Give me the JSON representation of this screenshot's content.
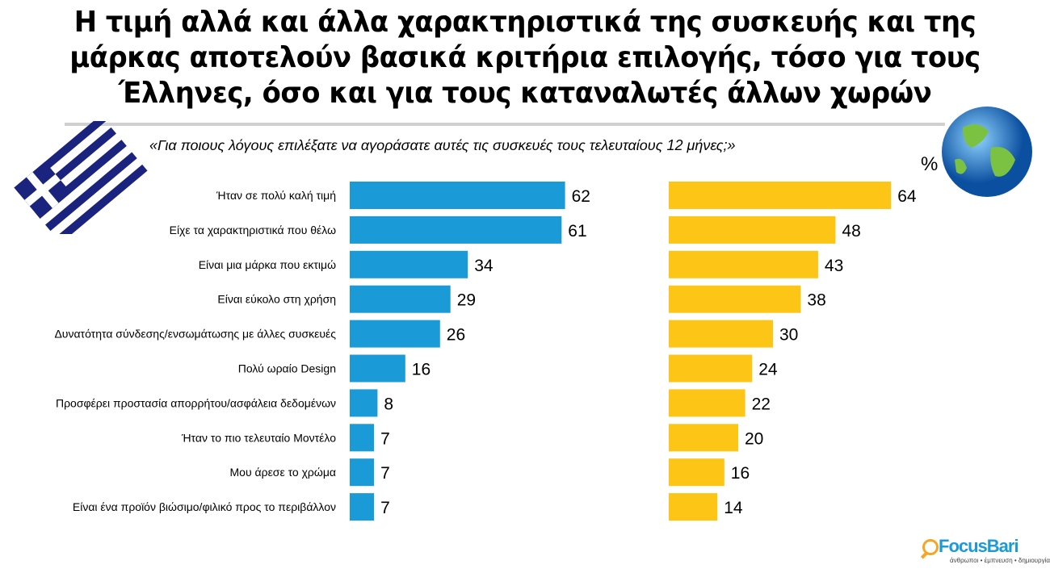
{
  "title": "Η τιμή αλλά και άλλα χαρακτηριστικά της συσκευής και της μάρκας αποτελούν βασικά κριτήρια επιλογής, τόσο για τους Έλληνες, όσο και για τους καταναλωτές άλλων χωρών",
  "subtitle": "«Για ποιους λόγους επιλέξατε να αγοράσατε αυτές τις συσκευές τους τελευταίους 12 μήνες;»",
  "unit": "%",
  "logo": {
    "name": "FocusBari",
    "tagline": "άνθρωποι • έμπνευση • δημιουργία"
  },
  "chart_data": {
    "type": "bar",
    "orientation": "horizontal",
    "title": "«Για ποιους λόγους επιλέξατε να αγοράσατε αυτές τις συσκευές τους τελευταίους 12 μήνες;»",
    "ylabel": "%",
    "categories": [
      "Ήταν σε πολύ καλή τιμή",
      "Είχε τα χαρακτηριστικά που θέλω",
      "Είναι μια μάρκα που εκτιμώ",
      "Είναι εύκολο στη χρήση",
      "Δυνατότητα σύνδεσης/ενσωμάτωσης με άλλες συσκευές",
      "Πολύ ωραίο Design",
      "Προσφέρει προστασία απορρήτου/ασφάλεια δεδομένων",
      "Ήταν το πιο τελευταίο Μοντέλο",
      "Μου άρεσε το χρώμα",
      "Είναι ένα προϊόν βιώσιμο/φιλικό προς το περιβάλλον"
    ],
    "series": [
      {
        "name": "Greece",
        "icon": "greek-flag-icon",
        "color": "#1b9ad8",
        "values": [
          62,
          61,
          34,
          29,
          26,
          16,
          8,
          7,
          7,
          7
        ]
      },
      {
        "name": "Global",
        "icon": "globe-icon",
        "color": "#fdc515",
        "values": [
          64,
          48,
          43,
          38,
          30,
          24,
          22,
          20,
          16,
          14
        ]
      }
    ],
    "xlim": [
      0,
      70
    ],
    "grid": false,
    "legend": "none"
  }
}
